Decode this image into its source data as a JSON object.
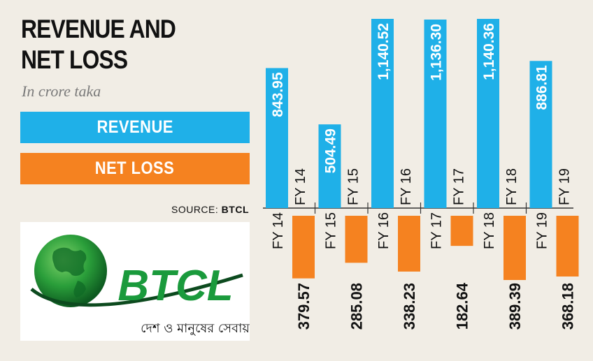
{
  "header": {
    "title_line1": "REVENUE AND",
    "title_line2": "NET LOSS",
    "subtitle": "In crore taka"
  },
  "legend": {
    "revenue_label": "REVENUE",
    "loss_label": "NET LOSS"
  },
  "source": {
    "prefix": "SOURCE:",
    "name": "BTCL"
  },
  "logo": {
    "brand": "BTCL",
    "tagline": "দেশ ও মানুষের সেবায়"
  },
  "colors": {
    "revenue": "#1fb0e8",
    "loss": "#f58220",
    "logo_green": "#1a9a3c",
    "background": "#f1ede5"
  },
  "chart_data": {
    "type": "bar",
    "categories": [
      "FY 14",
      "FY 15",
      "FY 16",
      "FY 17",
      "FY 18",
      "FY 19"
    ],
    "series": [
      {
        "name": "REVENUE",
        "values": [
          843.95,
          504.49,
          1140.52,
          1136.3,
          1140.36,
          886.81
        ],
        "labels": [
          "843.95",
          "504.49",
          "1,140.52",
          "1,136.30",
          "1,140.36",
          "886.81"
        ]
      },
      {
        "name": "NET LOSS",
        "values": [
          379.57,
          285.08,
          338.23,
          182.64,
          389.39,
          368.18
        ],
        "labels": [
          "379.57",
          "285.08",
          "338.23",
          "182.64",
          "389.39",
          "368.18"
        ]
      }
    ],
    "xlabel": "",
    "ylabel": "",
    "grid": false,
    "legend_position": "left"
  }
}
